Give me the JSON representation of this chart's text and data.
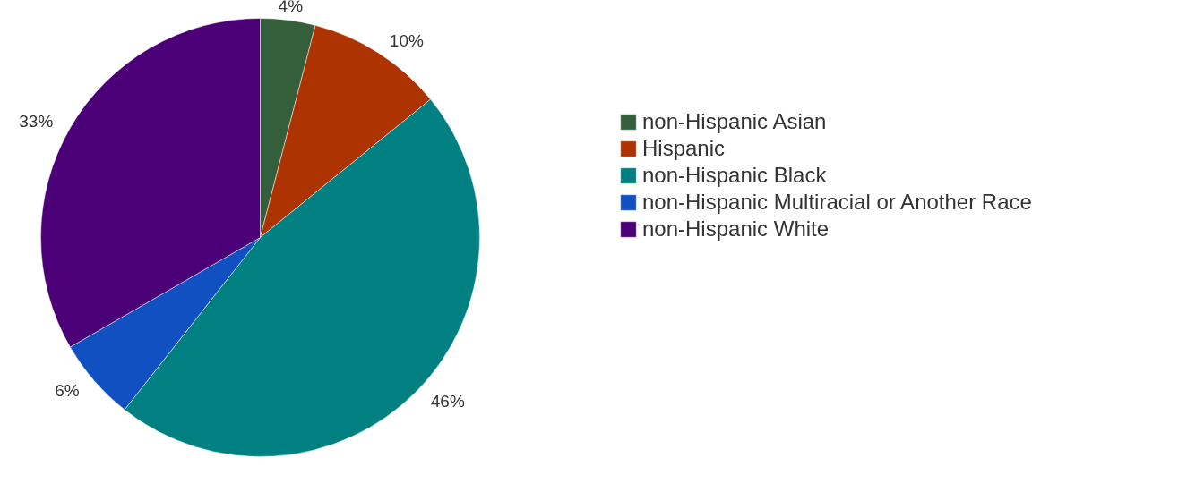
{
  "chart_data": {
    "type": "pie",
    "categories": [
      "non-Hispanic Asian",
      "Hispanic",
      "non-Hispanic Black",
      "non-Hispanic Multiracial or Another Race",
      "non-Hispanic White"
    ],
    "values": [
      4,
      10,
      46,
      6,
      33
    ],
    "colors": [
      "#355e3b",
      "#ad3400",
      "#008080",
      "#1150c0",
      "#4b0078"
    ],
    "value_labels": [
      "4%",
      "10%",
      "46%",
      "6%",
      "33%"
    ],
    "legend": "right"
  }
}
